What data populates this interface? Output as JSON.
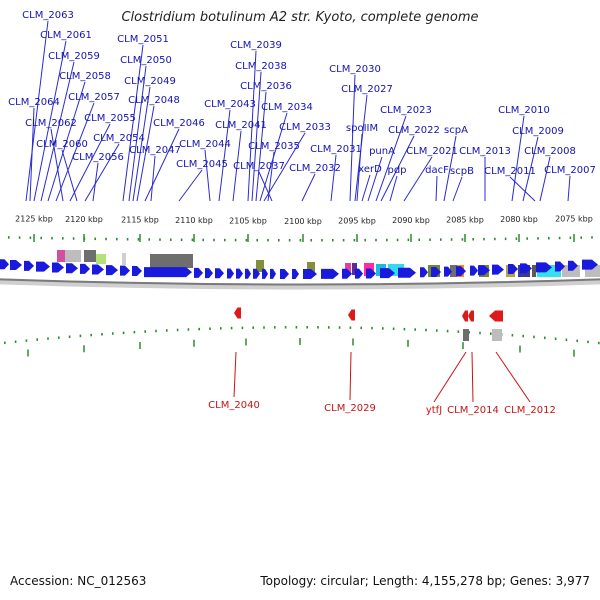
{
  "title": "Clostridium botulinum A2 str. Kyoto, complete genome",
  "accession": "Accession: NC_012563",
  "summary": "Topology: circular; Length: 4,155,278 bp; Genes: 3,977",
  "colors": {
    "forward_gene": "#1a1adc",
    "reverse_gene": "#dc1a1a",
    "label_forward": "#1414b4",
    "label_reverse": "#c81414",
    "tick": "#2e8b2e",
    "backbone": "#8a8a8a"
  },
  "axis": {
    "unit": "kbp",
    "ticks": [
      "2125 kbp",
      "2120 kbp",
      "2115 kbp",
      "2110 kbp",
      "2105 kbp",
      "2100 kbp",
      "2095 kbp",
      "2090 kbp",
      "2085 kbp",
      "2080 kbp",
      "2075 kbp"
    ]
  },
  "forward_labels": [
    "CLM_2063",
    "CLM_2061",
    "CLM_2059",
    "CLM_2058",
    "CLM_2064",
    "CLM_2057",
    "CLM_2062",
    "CLM_2055",
    "CLM_2060",
    "CLM_2054",
    "CLM_2056",
    "CLM_2051",
    "CLM_2050",
    "CLM_2049",
    "CLM_2048",
    "CLM_2046",
    "CLM_2047",
    "CLM_2039",
    "CLM_2038",
    "CLM_2036",
    "CLM_2043",
    "CLM_2034",
    "CLM_2041",
    "CLM_2044",
    "CLM_2033",
    "CLM_2035",
    "CLM_2045",
    "CLM_2037",
    "CLM_2032",
    "CLM_2030",
    "CLM_2027",
    "spoIIM",
    "CLM_2031",
    "xerD",
    "punA",
    "CLM_2023",
    "CLM_2022",
    "pdp",
    "CLM_2021",
    "dacF",
    "scpA",
    "scpB",
    "CLM_2013",
    "CLM_2010",
    "CLM_2009",
    "CLM_2011",
    "CLM_2008",
    "CLM_2007"
  ],
  "reverse_labels": [
    "CLM_2040",
    "CLM_2029",
    "ytfJ",
    "CLM_2014",
    "CLM_2012"
  ]
}
